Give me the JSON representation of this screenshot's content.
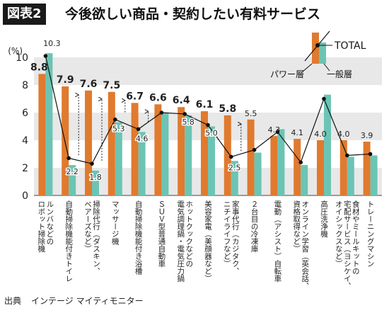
{
  "header": {
    "figure_label": "図表2",
    "title": "今後欲しい商品・契約したい有料サービス"
  },
  "source": {
    "label": "出典",
    "text": "インテージ マイティモニター"
  },
  "colors": {
    "power": "#e07a2e",
    "general": "#6cc4b4",
    "band": "#e8e8e8",
    "total": "#111111"
  },
  "chart_data": {
    "type": "bar",
    "title": "",
    "ylabel": "(%)",
    "ylim": [
      0,
      12
    ],
    "yticks": [
      0,
      2,
      4,
      6,
      8,
      10
    ],
    "grid": "alternating bands",
    "legend": {
      "total": "TOTAL",
      "power": "パワー層",
      "general": "一般層",
      "position": "top-right"
    },
    "categories": [
      "ルンバなどのロボット掃除機",
      "自動掃除機能付きトイレ",
      "掃除代行(ダスキン、ベアーズなど)",
      "マッサージ機",
      "自動掃除機能付き浴槽",
      "SUV型普通自動車",
      "電気調理鍋・電気圧力鍋",
      "美容家電(美顔器など)",
      "家事代行(カジタク、ニチイライフなど)",
      "2台目の冷凍庫",
      "電動(アシスト)自転車",
      "オンライン学習(英会話、資格取得など)",
      "高圧洗浄機",
      "食材やミールキットの宅配サービス(ヨシケイ、オイシックスなど)",
      "トレーニングマシン"
    ],
    "category_lines": [
      [
        "ルンバなどの",
        "ロボット掃除機"
      ],
      [
        "自動掃除機能付きトイレ"
      ],
      [
        "掃除代行（ダスキン、",
        "ベアーズなど）"
      ],
      [
        "マッサージ機"
      ],
      [
        "自動掃除機能付き浴槽"
      ],
      [
        "ＳＵＶ型普通自動車"
      ],
      [
        "ホットクックなどの",
        "電気調理鍋・電気圧力鍋"
      ],
      [
        "美容家電（美顔器など）"
      ],
      [
        "家事代行（カジタク、",
        "ニチイライフなど）"
      ],
      [
        "２台目の冷凍庫"
      ],
      [
        "電動（アシスト）自転車"
      ],
      [
        "オンライン学習（英会話、",
        "資格取得など）"
      ],
      [
        "高圧洗浄機"
      ],
      [
        "食材やミールキットの",
        "宅配サービス（ヨシケイ、",
        "オイシックスなど）"
      ],
      [
        "トレーニングマシン"
      ]
    ],
    "series": [
      {
        "name": "パワー層",
        "values": [
          8.8,
          7.9,
          7.6,
          7.5,
          6.7,
          6.6,
          6.4,
          6.1,
          5.8,
          5.5,
          4.3,
          4.1,
          4.0,
          4.0,
          3.9
        ],
        "labels": [
          "8.8",
          "7.9",
          "7.6",
          "7.5",
          "6.7",
          "6.6",
          "6.4",
          "6.1",
          "5.8",
          "5.5",
          "4.3",
          "4.1",
          "4.0",
          "4.0",
          "3.9"
        ]
      },
      {
        "name": "一般層",
        "values": [
          10.3,
          2.2,
          1.8,
          5.3,
          4.6,
          6.0,
          5.8,
          5.0,
          2.5,
          3.1,
          4.8,
          2.2,
          7.3,
          2.8,
          2.9
        ],
        "labels": [
          "10.3",
          "2.2",
          "1.8",
          "5.3",
          "4.6",
          "",
          "5.8",
          "5.0",
          "2.5",
          "",
          "",
          "",
          "",
          "",
          ""
        ]
      },
      {
        "name": "TOTAL",
        "values": [
          10.1,
          2.7,
          2.3,
          5.5,
          4.8,
          6.0,
          5.9,
          5.1,
          2.8,
          3.3,
          4.6,
          2.4,
          7.0,
          2.9,
          3.0
        ]
      }
    ]
  }
}
